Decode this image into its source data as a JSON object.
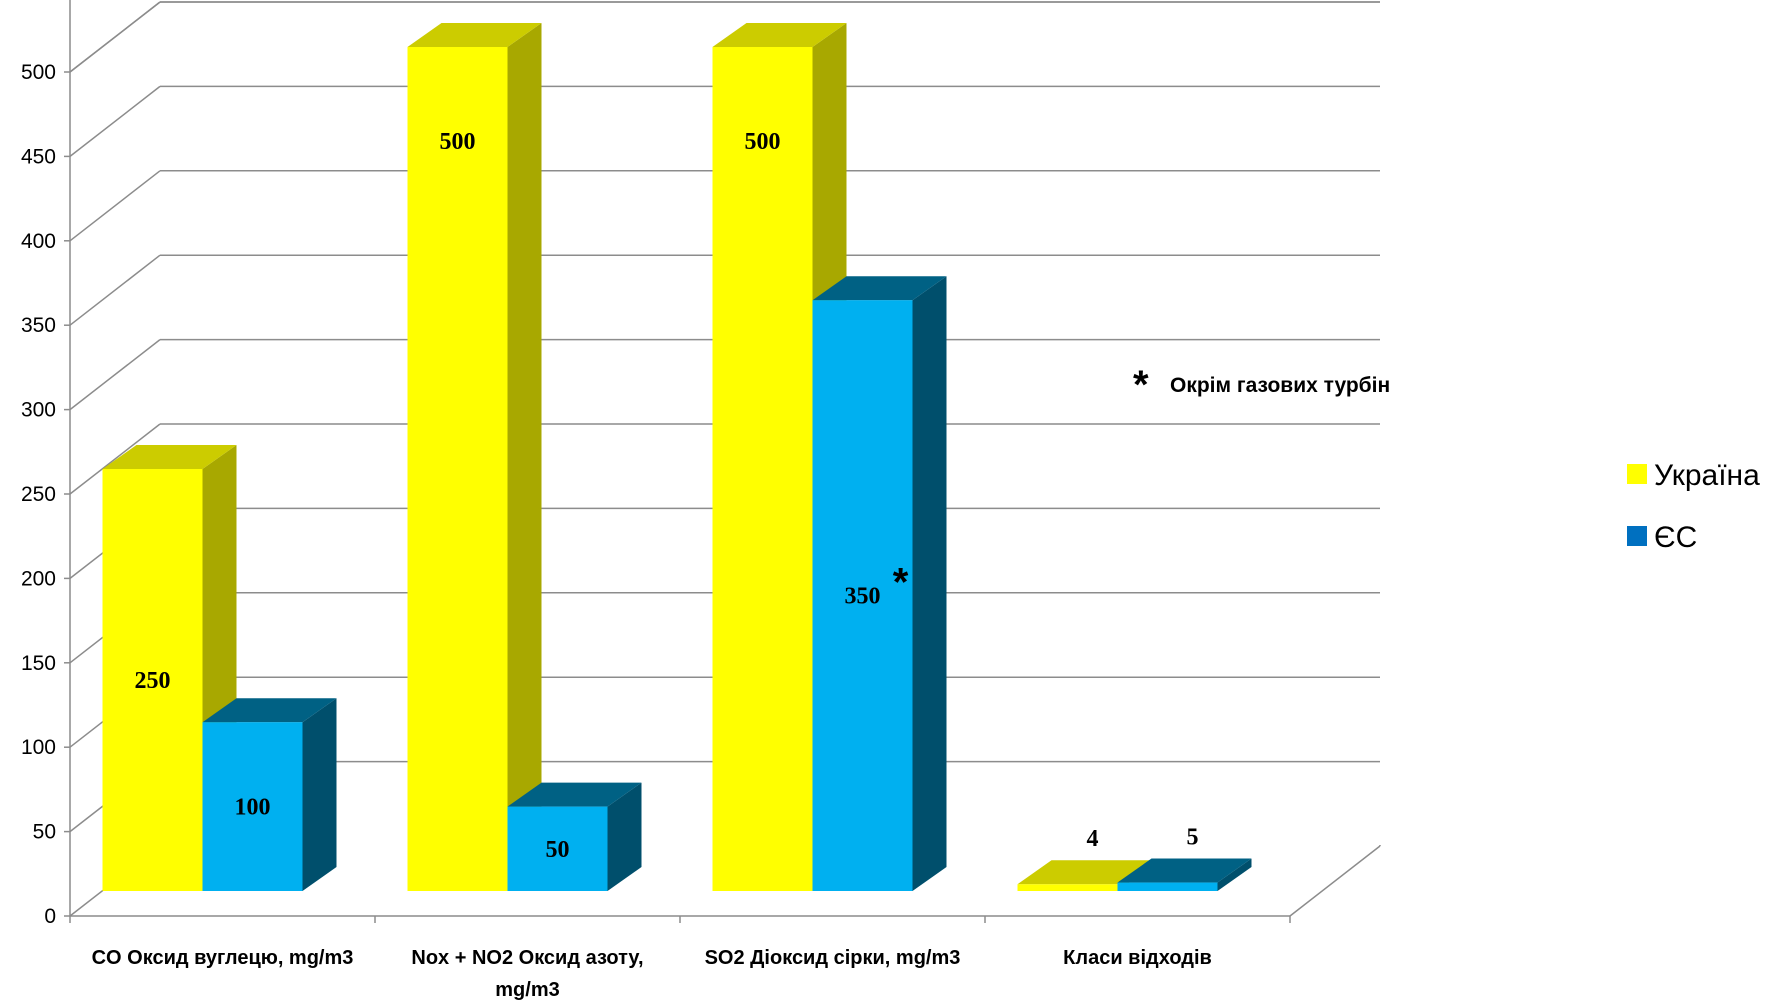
{
  "chart_data": {
    "type": "bar",
    "title": "",
    "xlabel": "",
    "ylabel": "",
    "categories": [
      [
        "CO Оксид вуглецю, mg/m3"
      ],
      [
        "Nox + NO2 Оксид азоту,",
        "mg/m3"
      ],
      [
        "SO2 Діоксид сірки, mg/m3"
      ],
      [
        "Класи відходів"
      ]
    ],
    "series": [
      {
        "name": "Україна",
        "values": [
          250,
          500,
          500,
          4
        ],
        "labels": [
          "250",
          "500",
          "500",
          "4"
        ],
        "color": "#FFFF00"
      },
      {
        "name": "ЄС",
        "values": [
          100,
          50,
          350,
          5
        ],
        "labels": [
          "100",
          "50",
          "350",
          "5"
        ],
        "color": "#00B0F0"
      }
    ],
    "ylim": [
      0,
      500
    ],
    "yticks": [
      0,
      50,
      100,
      150,
      200,
      250,
      300,
      350,
      400,
      450,
      500
    ],
    "grid": true,
    "legend_position": "right",
    "annotation": {
      "marker": "*",
      "text": "Окрім газових турбін"
    },
    "value_marker": {
      "series": 1,
      "index": 2,
      "marker": "*"
    }
  }
}
